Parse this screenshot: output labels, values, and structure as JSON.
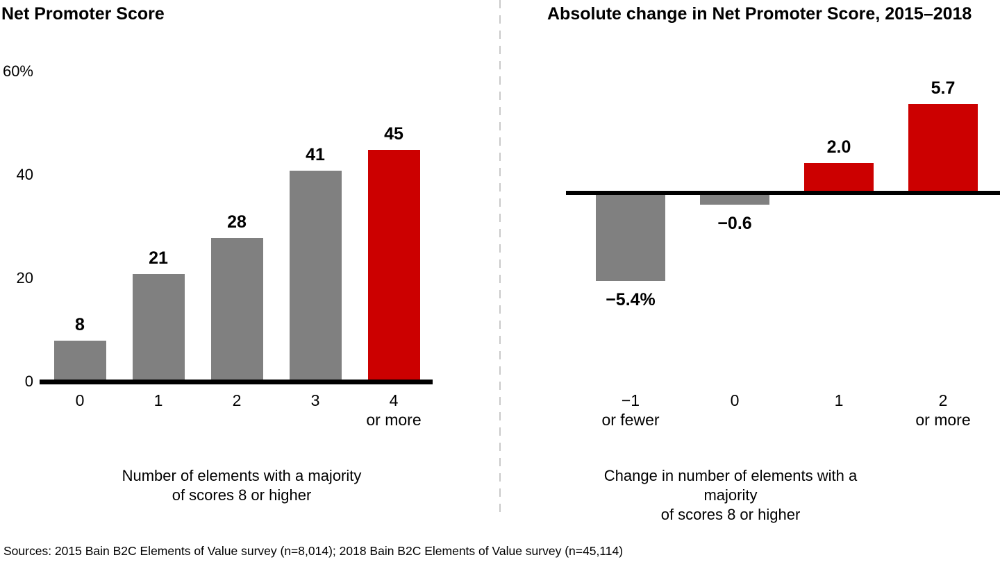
{
  "chart_data": [
    {
      "type": "bar",
      "title": "Net Promoter Score",
      "ylim": [
        0,
        60
      ],
      "y_tick_labels": [
        "60%",
        "40",
        "20",
        "0"
      ],
      "y_tick_values": [
        60,
        40,
        20,
        0
      ],
      "categories_line1": [
        "0",
        "1",
        "2",
        "3",
        "4"
      ],
      "categories_line2": [
        "",
        "",
        "",
        "",
        "or more"
      ],
      "values": [
        8,
        21,
        28,
        41,
        45
      ],
      "value_labels": [
        "8",
        "21",
        "28",
        "41",
        "45"
      ],
      "bar_colors": [
        "gray",
        "gray",
        "gray",
        "gray",
        "red"
      ],
      "xlabel_line1": "Number of elements with a majority",
      "xlabel_line2": "of scores 8 or higher",
      "legend": "none",
      "grid": false
    },
    {
      "type": "bar",
      "title": "Absolute change in Net Promoter Score, 2015–2018",
      "categories_line1": [
        "−1",
        "0",
        "1",
        "2"
      ],
      "categories_line2": [
        "or fewer",
        "",
        "",
        "or more"
      ],
      "values": [
        -5.4,
        -0.6,
        2.0,
        5.7
      ],
      "value_labels": [
        "−5.4%",
        "−0.6",
        "2.0",
        "5.7"
      ],
      "bar_colors": [
        "gray",
        "gray",
        "red",
        "red"
      ],
      "xlabel_line1": "Change in number of elements with a majority",
      "xlabel_line2": "of scores 8 or higher",
      "legend": "none",
      "grid": false
    }
  ],
  "footer": "Sources: 2015 Bain B2C Elements of Value survey (n=8,014); 2018 Bain B2C Elements of Value survey (n=45,114)",
  "colors": {
    "bar_gray": "#808080",
    "bar_red": "#cc0000",
    "axis_line": "#000000",
    "divider": "#c9c9c9",
    "text": "#000000"
  }
}
